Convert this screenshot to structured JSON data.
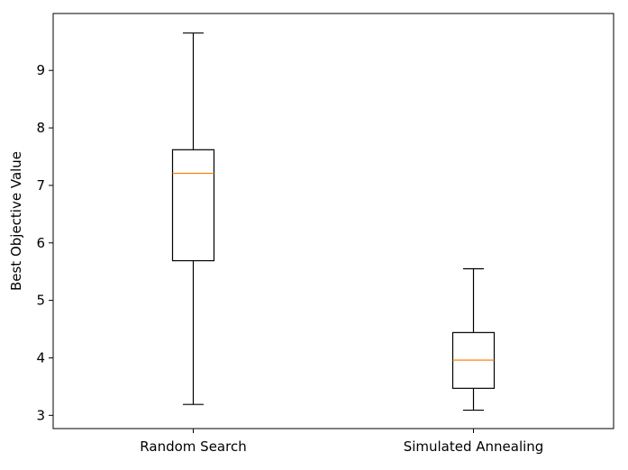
{
  "chart_data": {
    "type": "box",
    "title": "",
    "xlabel": "",
    "ylabel": "Best Objective Value",
    "ylim": [
      2.77,
      9.99
    ],
    "yticks": [
      3,
      4,
      5,
      6,
      7,
      8,
      9
    ],
    "grid": false,
    "categories": [
      "Random Search",
      "Simulated Annealing"
    ],
    "boxes": [
      {
        "category": "Random Search",
        "whisker_low": 3.19,
        "q1": 5.69,
        "median": 7.21,
        "q3": 7.62,
        "whisker_high": 9.65
      },
      {
        "category": "Simulated Annealing",
        "whisker_low": 3.09,
        "q1": 3.47,
        "median": 3.96,
        "q3": 4.44,
        "whisker_high": 5.55
      }
    ],
    "colors": {
      "box": "#000000",
      "whisker": "#000000",
      "median": "#ff7f0e",
      "frame": "#000000"
    }
  }
}
